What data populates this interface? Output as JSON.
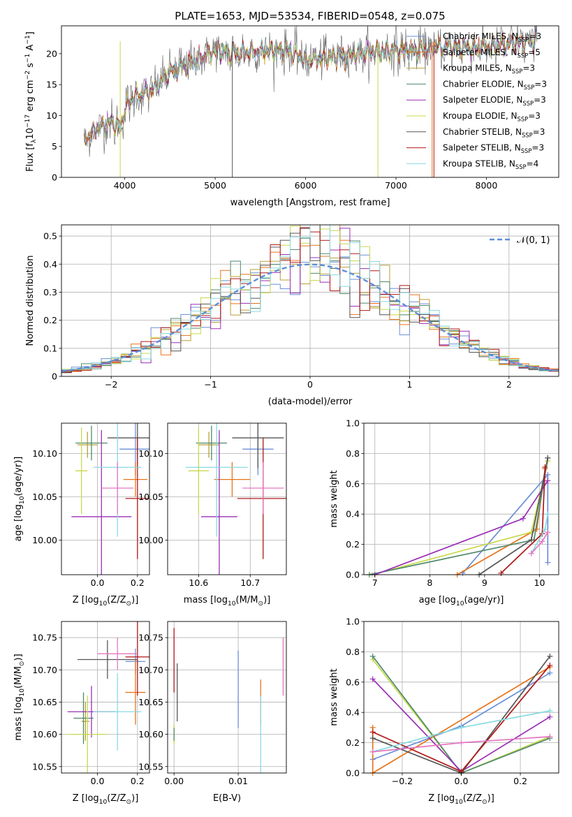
{
  "colors": {
    "series": [
      "#6a8fd8",
      "#e8731a",
      "#b8a038",
      "#4e8a6a",
      "#9b2fb5",
      "#c8d84a",
      "#555555",
      "#b01818",
      "#86dae0"
    ],
    "normal_line": "#5b8fd6",
    "grid": "#b0b0b0"
  },
  "series_labels": [
    {
      "pre": "Chabrier MILES, N",
      "sub": "SSP",
      "post": "=3"
    },
    {
      "pre": "Salpeter MILES, N",
      "sub": "SSP",
      "post": "=5"
    },
    {
      "pre": "Kroupa MILES, N",
      "sub": "SSP",
      "post": "=3"
    },
    {
      "pre": "Chabrier ELODIE, N",
      "sub": "SSP",
      "post": "=3"
    },
    {
      "pre": "Salpeter ELODIE, N",
      "sub": "SSP",
      "post": "=3"
    },
    {
      "pre": "Kroupa ELODIE, N",
      "sub": "SSP",
      "post": "=3"
    },
    {
      "pre": "Chabrier STELIB, N",
      "sub": "SSP",
      "post": "=3"
    },
    {
      "pre": "Salpeter STELIB, N",
      "sub": "SSP",
      "post": "=3"
    },
    {
      "pre": "Kroupa STELIB, N",
      "sub": "SSP",
      "post": "=4"
    }
  ],
  "chart_data": [
    {
      "type": "line",
      "panel": "spectrum",
      "title": "PLATE=1653, MJD=53534, FIBERID=0548, z=0.075",
      "xlabel": "wavelength [Angstrom, rest frame]",
      "ylabel": {
        "pre": "Flux [f",
        "sub": "λ",
        "mid": "10",
        "sup1": "−17",
        "post": " erg cm",
        "sup2": "−2",
        "post2": " s",
        "sup3": "−1",
        "post3": " A",
        "sup4": "−1",
        "end": "]"
      },
      "xlim": [
        3300,
        8800
      ],
      "ylim": [
        0,
        24.5
      ],
      "xticks": [
        4000,
        5000,
        6000,
        7000,
        8000
      ],
      "yticks": [
        0,
        5,
        10,
        15,
        20
      ],
      "continuum": [
        [
          3550,
          6
        ],
        [
          3700,
          8
        ],
        [
          3850,
          9
        ],
        [
          3950,
          8
        ],
        [
          4000,
          11
        ],
        [
          4100,
          13
        ],
        [
          4300,
          14
        ],
        [
          4500,
          17
        ],
        [
          4800,
          19
        ],
        [
          5000,
          20.5
        ],
        [
          5200,
          20
        ],
        [
          5500,
          20.5
        ],
        [
          5800,
          20.5
        ],
        [
          6000,
          19
        ],
        [
          6300,
          19.5
        ],
        [
          6600,
          20
        ],
        [
          6900,
          20.5
        ],
        [
          7200,
          20.5
        ],
        [
          7500,
          21
        ],
        [
          8000,
          21
        ],
        [
          8500,
          22
        ]
      ],
      "legend_loc": "right"
    },
    {
      "type": "line",
      "panel": "residual-histogram",
      "xlabel": "(data-model)/error",
      "ylabel": "Normed distribution",
      "xlim": [
        -2.5,
        2.5
      ],
      "ylim": [
        0,
        0.54
      ],
      "xticks": [
        -2,
        -1,
        0,
        1,
        2
      ],
      "yticks": [
        0.0,
        0.1,
        0.2,
        0.3,
        0.4,
        0.5
      ],
      "bin_width": 0.1,
      "normal_label": "𝒩(0, 1)",
      "legend_loc": "upper right",
      "grid": true
    },
    {
      "type": "scatter",
      "panel": "age-vs-Z",
      "xlabel": {
        "pre": "Z [log",
        "sub": "10",
        "mid": "(Z/Z",
        "sub2": "⊙",
        "end": ")]"
      },
      "ylabel": {
        "pre": "age  [log",
        "sub": "10",
        "mid": "(age/yr)",
        "end": "]"
      },
      "xlim": [
        -0.18,
        0.26
      ],
      "ylim": [
        9.96,
        10.135
      ],
      "xticks": [
        {
          "v": 0.0,
          "t": "0.0"
        },
        {
          "v": 0.2,
          "t": "0.2"
        }
      ],
      "yticks": [
        {
          "v": 10.0,
          "t": "10.00"
        },
        {
          "v": 10.05,
          "t": "10.05"
        },
        {
          "v": 10.1,
          "t": "10.10"
        }
      ],
      "points": [
        {
          "s": 0,
          "x": 0.19,
          "xe": 0.08,
          "y": 10.105,
          "ye": 0.03
        },
        {
          "s": 1,
          "x": 0.19,
          "xe": 0.06,
          "y": 10.07,
          "ye": 0.02
        },
        {
          "s": 2,
          "x": -0.05,
          "xe": 0.05,
          "y": 10.11,
          "ye": 0.015
        },
        {
          "s": 3,
          "x": -0.03,
          "xe": 0.08,
          "y": 10.112,
          "ye": 0.02
        },
        {
          "s": 4,
          "x": 0.02,
          "xe": 0.15,
          "y": 10.027,
          "ye": 0.1
        },
        {
          "s": 5,
          "x": -0.08,
          "xe": 0.03,
          "y": 10.08,
          "ye": 0.05
        },
        {
          "s": 6,
          "x": 0.2,
          "xe": 0.15,
          "y": 10.118,
          "ye": 0.035
        },
        {
          "s": 7,
          "x": 0.2,
          "xe": 0.06,
          "y": 10.048,
          "ye": 0.07
        },
        {
          "s": 8,
          "x": 0.1,
          "xe": 0.12,
          "y": 10.084,
          "ye": 0.08
        },
        {
          "s": 2,
          "x": 0.1,
          "xe": 0.08,
          "y": 10.06,
          "ye": 0.03,
          "c": "#e377c2"
        }
      ]
    },
    {
      "type": "scatter",
      "panel": "age-vs-mass",
      "xlabel": {
        "pre": "mass [log",
        "sub": "10",
        "mid": "(M/M",
        "sub2": "⊙",
        "end": ")]"
      },
      "ylabel": "",
      "xlim": [
        10.54,
        10.77
      ],
      "ylim": [
        9.96,
        10.135
      ],
      "xticks": [
        {
          "v": 10.6,
          "t": "10.6"
        },
        {
          "v": 10.7,
          "t": "10.7"
        }
      ],
      "yticks": [
        {
          "v": 10.0,
          "t": "10.00"
        },
        {
          "v": 10.05,
          "t": "10.05"
        },
        {
          "v": 10.1,
          "t": "10.10"
        }
      ],
      "points": [
        {
          "s": 0,
          "x": 10.715,
          "xe": 0.03,
          "y": 10.105,
          "ye": 0.03
        },
        {
          "s": 1,
          "x": 10.665,
          "xe": 0.035,
          "y": 10.07,
          "ye": 0.02
        },
        {
          "s": 2,
          "x": 10.62,
          "xe": 0.02,
          "y": 10.11,
          "ye": 0.015
        },
        {
          "s": 3,
          "x": 10.625,
          "xe": 0.03,
          "y": 10.112,
          "ye": 0.02
        },
        {
          "s": 4,
          "x": 10.64,
          "xe": 0.035,
          "y": 10.027,
          "ye": 0.1
        },
        {
          "s": 5,
          "x": 10.6,
          "xe": 0.02,
          "y": 10.08,
          "ye": 0.05
        },
        {
          "s": 6,
          "x": 10.715,
          "xe": 0.05,
          "y": 10.118,
          "ye": 0.035
        },
        {
          "s": 7,
          "x": 10.725,
          "xe": 0.05,
          "y": 10.048,
          "ye": 0.07
        },
        {
          "s": 8,
          "x": 10.635,
          "xe": 0.06,
          "y": 10.084,
          "ye": 0.08
        },
        {
          "s": 2,
          "x": 10.725,
          "xe": 0.04,
          "y": 10.06,
          "ye": 0.03,
          "c": "#e377c2"
        }
      ]
    },
    {
      "type": "line",
      "panel": "mass-weight-vs-age",
      "xlabel": {
        "pre": "age  [log",
        "sub": "10",
        "mid": "(age/yr)",
        "end": "]"
      },
      "ylabel": "mass weight",
      "xlim": [
        6.8,
        10.35
      ],
      "ylim": [
        0,
        1
      ],
      "xticks": [
        {
          "v": 7,
          "t": "7"
        },
        {
          "v": 8,
          "t": "8"
        },
        {
          "v": 9,
          "t": "9"
        },
        {
          "v": 10,
          "t": "10"
        }
      ],
      "yticks": [
        {
          "v": 0.0,
          "t": "0.0"
        },
        {
          "v": 0.2,
          "t": "0.2"
        },
        {
          "v": 0.4,
          "t": "0.4"
        },
        {
          "v": 0.6,
          "t": "0.6"
        },
        {
          "v": 0.8,
          "t": "0.8"
        },
        {
          "v": 1.0,
          "t": "1.0"
        }
      ],
      "lines": [
        {
          "s": 0,
          "pts": [
            [
              8.6,
              0.01
            ],
            [
              10.15,
              0.66
            ],
            [
              10.15,
              0.08
            ]
          ]
        },
        {
          "s": 1,
          "pts": [
            [
              8.5,
              0.0
            ],
            [
              9.95,
              0.3
            ],
            [
              10.1,
              0.7
            ]
          ]
        },
        {
          "s": 5,
          "pts": [
            [
              6.95,
              0.0
            ],
            [
              9.85,
              0.28
            ],
            [
              10.15,
              0.75
            ]
          ]
        },
        {
          "s": 3,
          "pts": [
            [
              6.9,
              0.0
            ],
            [
              9.9,
              0.23
            ],
            [
              10.15,
              0.77
            ]
          ]
        },
        {
          "s": 4,
          "pts": [
            [
              7.0,
              0.0
            ],
            [
              9.7,
              0.37
            ],
            [
              10.15,
              0.62
            ]
          ]
        },
        {
          "s": 6,
          "pts": [
            [
              8.9,
              0.0
            ],
            [
              9.85,
              0.23
            ],
            [
              10.15,
              0.77
            ]
          ]
        },
        {
          "s": 7,
          "pts": [
            [
              9.3,
              0.01
            ],
            [
              10.05,
              0.27
            ],
            [
              10.1,
              0.71
            ]
          ]
        },
        {
          "s": 8,
          "pts": [
            [
              9.85,
              0.14
            ],
            [
              10.1,
              0.3
            ],
            [
              10.15,
              0.4
            ]
          ]
        },
        {
          "s": 2,
          "pts": [
            [
              9.85,
              0.14
            ],
            [
              10.05,
              0.22
            ],
            [
              10.15,
              0.28
            ]
          ],
          "c": "#e377c2"
        }
      ],
      "grid": true
    },
    {
      "type": "scatter",
      "panel": "mass-vs-Z",
      "xlabel": {
        "pre": "Z [log",
        "sub": "10",
        "mid": "(Z/Z",
        "sub2": "⊙",
        "end": ")]"
      },
      "ylabel": {
        "pre": "mass [log",
        "sub": "10",
        "mid": "(M/M",
        "sub2": "⊙",
        "end": ")]"
      },
      "xlim": [
        -0.18,
        0.26
      ],
      "ylim": [
        10.54,
        10.775
      ],
      "xticks": [
        {
          "v": 0.0,
          "t": "0.0"
        },
        {
          "v": 0.2,
          "t": "0.2"
        }
      ],
      "yticks": [
        {
          "v": 10.55,
          "t": "10.55"
        },
        {
          "v": 10.6,
          "t": "10.60"
        },
        {
          "v": 10.65,
          "t": "10.65"
        },
        {
          "v": 10.7,
          "t": "10.70"
        },
        {
          "v": 10.75,
          "t": "10.75"
        }
      ],
      "points": [
        {
          "s": 0,
          "x": 0.19,
          "xe": 0.05,
          "y": 10.713,
          "ye": 0.02
        },
        {
          "s": 1,
          "x": 0.19,
          "xe": 0.05,
          "y": 10.665,
          "ye": 0.05
        },
        {
          "s": 2,
          "x": -0.06,
          "xe": 0.02,
          "y": 10.62,
          "ye": 0.03
        },
        {
          "s": 3,
          "x": -0.07,
          "xe": 0.05,
          "y": 10.625,
          "ye": 0.04
        },
        {
          "s": 4,
          "x": -0.03,
          "xe": 0.12,
          "y": 10.635,
          "ye": 0.04
        },
        {
          "s": 5,
          "x": -0.05,
          "xe": 0.1,
          "y": 10.6,
          "ye": 0.06
        },
        {
          "s": 6,
          "x": 0.05,
          "xe": 0.15,
          "y": 10.716,
          "ye": 0.03
        },
        {
          "s": 7,
          "x": 0.2,
          "xe": 0.06,
          "y": 10.72,
          "ye": 0.06
        },
        {
          "s": 8,
          "x": 0.1,
          "xe": 0.12,
          "y": 10.635,
          "ye": 0.06
        },
        {
          "s": 2,
          "x": 0.1,
          "xe": 0.1,
          "y": 10.725,
          "ye": 0.025,
          "c": "#e377c2"
        }
      ]
    },
    {
      "type": "scatter",
      "panel": "mass-vs-EBV",
      "xlabel": "E(B-V)",
      "ylabel": "",
      "xlim": [
        -0.001,
        0.0175
      ],
      "ylim": [
        10.54,
        10.775
      ],
      "xticks": [
        {
          "v": 0.0,
          "t": "0.00"
        },
        {
          "v": 0.01,
          "t": "0.01"
        }
      ],
      "yticks": [
        {
          "v": 10.55,
          "t": "10.55"
        },
        {
          "v": 10.6,
          "t": "10.60"
        },
        {
          "v": 10.65,
          "t": "10.65"
        },
        {
          "v": 10.7,
          "t": "10.70"
        },
        {
          "v": 10.75,
          "t": "10.75"
        }
      ],
      "points": [
        {
          "s": 0,
          "x": 0.01,
          "xe": 0,
          "y": 10.67,
          "ye": 0.06
        },
        {
          "s": 1,
          "x": 0.0135,
          "xe": 0,
          "y": 10.65,
          "ye": 0.035
        },
        {
          "s": 5,
          "x": 0.0,
          "xe": 0,
          "y": 10.6,
          "ye": 0.015
        },
        {
          "s": 3,
          "x": 0.0,
          "xe": 0,
          "y": 10.6,
          "ye": 0.01
        },
        {
          "s": 6,
          "x": 0.0005,
          "xe": 0,
          "y": 10.665,
          "ye": 0.045
        },
        {
          "s": 7,
          "x": 0.0,
          "xe": 0,
          "y": 10.715,
          "ye": 0.05
        },
        {
          "s": 8,
          "x": 0.0135,
          "xe": 0,
          "y": 10.6,
          "ye": 0.06
        },
        {
          "s": 2,
          "x": 0.017,
          "xe": 0,
          "y": 10.705,
          "ye": 0.045,
          "c": "#e377c2"
        }
      ]
    },
    {
      "type": "line",
      "panel": "mass-weight-vs-Z",
      "xlabel": {
        "pre": "Z [log",
        "sub": "10",
        "mid": "(Z/Z",
        "sub2": "⊙",
        "end": ")]"
      },
      "ylabel": "mass weight",
      "xlim": [
        -0.33,
        0.33
      ],
      "ylim": [
        0,
        1
      ],
      "xticks": [
        {
          "v": -0.2,
          "t": "−0.2"
        },
        {
          "v": 0.0,
          "t": "0.0"
        },
        {
          "v": 0.2,
          "t": "0.2"
        }
      ],
      "yticks": [
        {
          "v": 0.0,
          "t": "0.0"
        },
        {
          "v": 0.2,
          "t": "0.2"
        },
        {
          "v": 0.4,
          "t": "0.4"
        },
        {
          "v": 0.6,
          "t": "0.6"
        },
        {
          "v": 0.8,
          "t": "0.8"
        },
        {
          "v": 1.0,
          "t": "1.0"
        }
      ],
      "lines": [
        {
          "s": 0,
          "pts": [
            [
              -0.3,
              0.09
            ],
            [
              0.0,
              0.31
            ],
            [
              0.3,
              0.66
            ]
          ]
        },
        {
          "s": 1,
          "pts": [
            [
              -0.3,
              0.3
            ],
            [
              -0.3,
              0.0
            ],
            [
              0.3,
              0.7
            ]
          ]
        },
        {
          "s": 5,
          "pts": [
            [
              -0.3,
              0.75
            ],
            [
              0.0,
              0.0
            ],
            [
              0.3,
              0.24
            ]
          ]
        },
        {
          "s": 3,
          "pts": [
            [
              -0.3,
              0.77
            ],
            [
              0.0,
              0.0
            ],
            [
              0.3,
              0.23
            ]
          ]
        },
        {
          "s": 4,
          "pts": [
            [
              -0.3,
              0.62
            ],
            [
              0.0,
              0.01
            ],
            [
              0.3,
              0.37
            ]
          ]
        },
        {
          "s": 6,
          "pts": [
            [
              -0.3,
              0.23
            ],
            [
              0.0,
              0.0
            ],
            [
              0.3,
              0.77
            ]
          ]
        },
        {
          "s": 7,
          "pts": [
            [
              -0.3,
              0.27
            ],
            [
              0.0,
              0.01
            ],
            [
              0.3,
              0.71
            ]
          ]
        },
        {
          "s": 8,
          "pts": [
            [
              -0.3,
              0.14
            ],
            [
              0.0,
              0.3
            ],
            [
              0.3,
              0.41
            ]
          ]
        },
        {
          "s": 2,
          "pts": [
            [
              -0.3,
              0.14
            ],
            [
              0.0,
              0.2
            ],
            [
              0.3,
              0.24
            ]
          ],
          "c": "#e377c2"
        }
      ],
      "grid": true
    }
  ]
}
